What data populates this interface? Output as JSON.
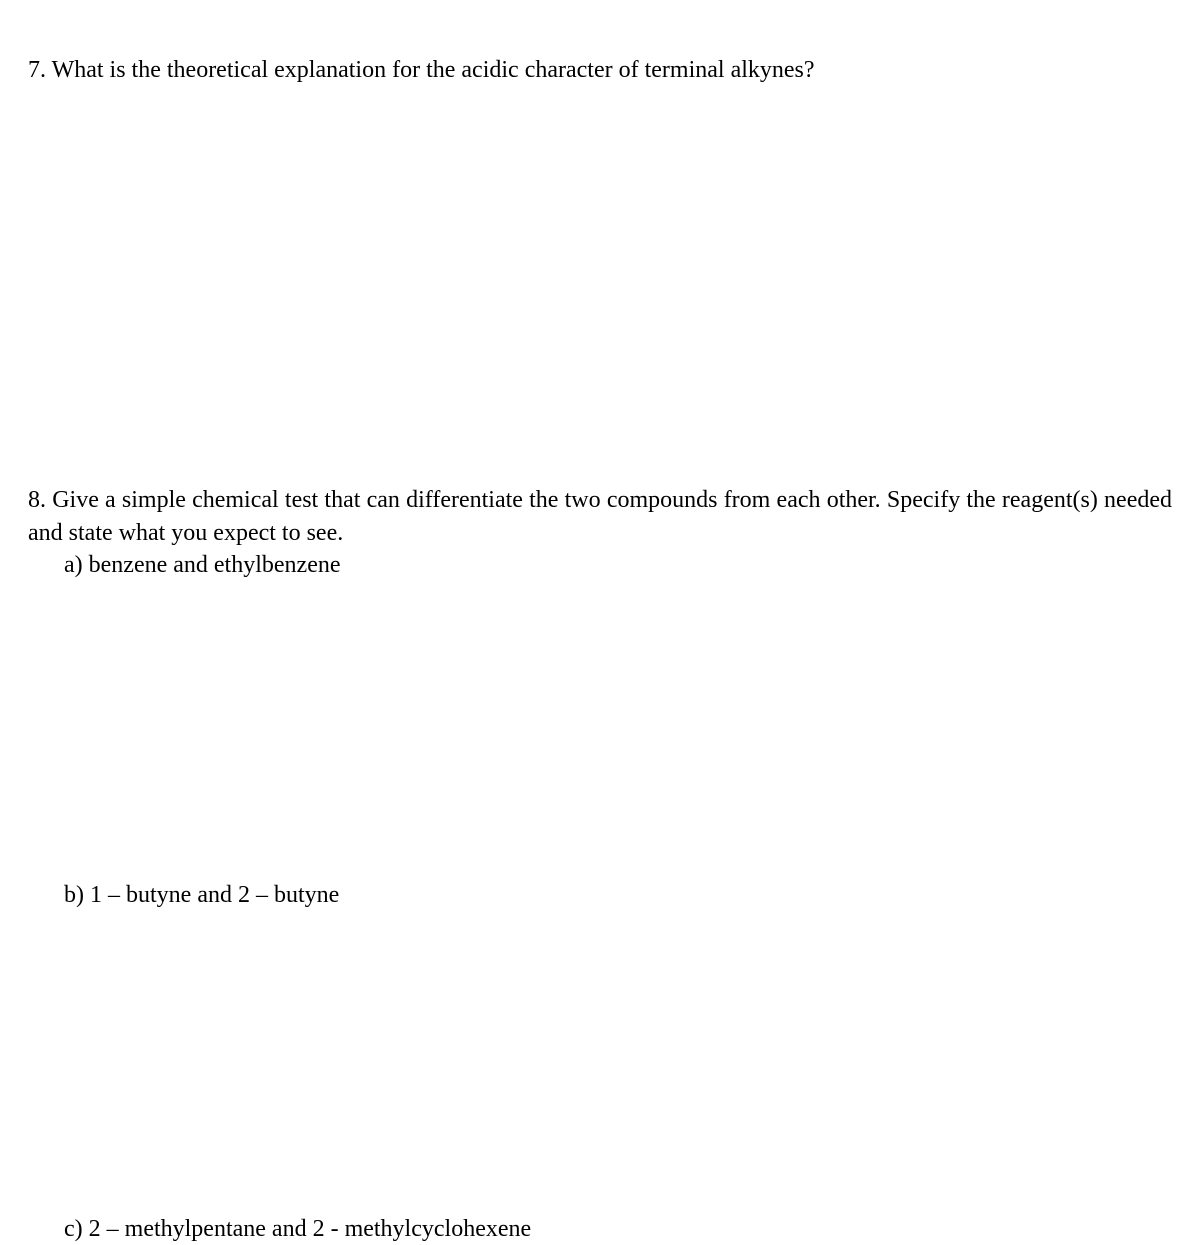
{
  "document": {
    "font_family": "Times New Roman",
    "background_color": "#ffffff",
    "text_color": "#000000",
    "base_font_size": 24
  },
  "questions": {
    "q7": {
      "text": "7. What is the theoretical explanation for the acidic character of terminal alkynes?"
    },
    "q8": {
      "main": "8. Give a simple chemical test that can differentiate the two compounds from each other. Specify the reagent(s) needed and state what you expect to see.",
      "a": "a) benzene and ethylbenzene",
      "b": "b) 1 – butyne and 2 – butyne",
      "c": "c) 2 – methylpentane  and 2 - methylcyclohexene"
    }
  }
}
